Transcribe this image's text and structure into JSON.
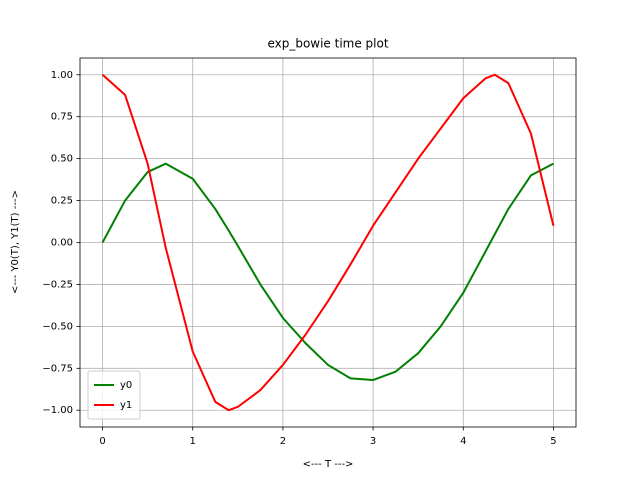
{
  "chart_data": {
    "type": "line",
    "title": "exp_bowie time plot",
    "x_label": "<--- T --->",
    "y_label": "<--- Y0(T), Y1(T) --->",
    "x": [
      0,
      0.25,
      0.5,
      0.7,
      1.0,
      1.25,
      1.4,
      1.5,
      1.75,
      2.0,
      2.25,
      2.5,
      2.75,
      3.0,
      3.25,
      3.5,
      3.75,
      4.0,
      4.25,
      4.35,
      4.5,
      4.75,
      5.0
    ],
    "series": [
      {
        "name": "y0",
        "color": "#008000",
        "values": [
          0,
          0.25,
          0.42,
          0.47,
          0.38,
          0.2,
          0.07,
          -0.02,
          -0.25,
          -0.45,
          -0.6,
          -0.73,
          -0.81,
          -0.82,
          -0.77,
          -0.66,
          -0.5,
          -0.3,
          -0.05,
          0.05,
          0.2,
          0.4,
          0.47
        ]
      },
      {
        "name": "y1",
        "color": "#ff0000",
        "values": [
          1.0,
          0.88,
          0.47,
          -0.03,
          -0.65,
          -0.95,
          -1.0,
          -0.98,
          -0.88,
          -0.73,
          -0.55,
          -0.35,
          -0.13,
          0.1,
          0.3,
          0.5,
          0.68,
          0.86,
          0.98,
          1.0,
          0.95,
          0.65,
          0.1
        ]
      }
    ],
    "xlim": [
      -0.25,
      5.25
    ],
    "ylim": [
      -1.1,
      1.1
    ],
    "xticks": [
      0,
      1,
      2,
      3,
      4,
      5
    ],
    "yticks": [
      {
        "value": -1,
        "label": "−1.00"
      },
      {
        "value": -0.75,
        "label": "−0.75"
      },
      {
        "value": -0.5,
        "label": "−0.50"
      },
      {
        "value": -0.25,
        "label": "−0.25"
      },
      {
        "value": 0,
        "label": "0.00"
      },
      {
        "value": 0.25,
        "label": "0.25"
      },
      {
        "value": 0.5,
        "label": "0.50"
      },
      {
        "value": 0.75,
        "label": "0.75"
      },
      {
        "value": 1,
        "label": "1.00"
      }
    ],
    "grid": true,
    "legend": "lower left"
  }
}
